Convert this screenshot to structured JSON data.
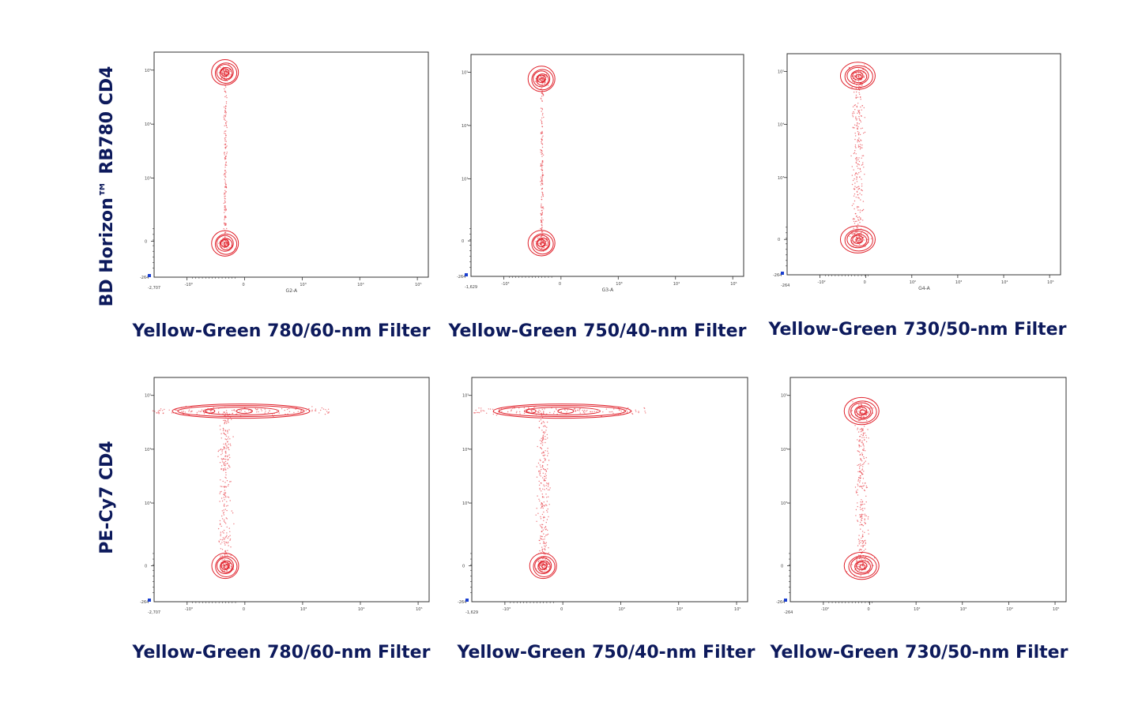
{
  "colors": {
    "contour": "#e0202a",
    "dot": "#e8474f",
    "text": "#0d1a5c",
    "axis": "#333333"
  },
  "row_labels": [
    "BD Horizon™ RB780 CD4",
    "PE-Cy7 CD4"
  ],
  "chart_data": [
    {
      "type": "scatter",
      "subtype": "flow-cytometry-contour",
      "row": 0,
      "col": 0,
      "title": "",
      "xlabel": "Yellow-Green 780/60-nm Filter",
      "ylabel": "BD Horizon™ RB780 CD4",
      "axis_name": "G2-A",
      "x_min_tick": "-2,707",
      "x_ticks": [
        "-10³",
        "0",
        "10³",
        "10⁴",
        "10⁵"
      ],
      "y_ticks": [
        "0",
        "10³",
        "10⁴",
        "10⁵"
      ],
      "scale": "biexponential",
      "populations": [
        {
          "name": "CD4-negative",
          "x": 0.0,
          "y": 0.15,
          "shape": "compact"
        },
        {
          "name": "CD4-positive",
          "x": 0.0,
          "y": 0.91,
          "shape": "compact"
        }
      ],
      "bridge": "tight vertical streak"
    },
    {
      "type": "scatter",
      "subtype": "flow-cytometry-contour",
      "row": 0,
      "col": 1,
      "title": "",
      "xlabel": "Yellow-Green 750/40-nm Filter",
      "ylabel": "BD Horizon™ RB780 CD4",
      "axis_name": "G3-A",
      "x_min_tick": "-1,629",
      "x_ticks": [
        "-10³",
        "0",
        "10³",
        "10⁴",
        "10⁵"
      ],
      "y_ticks": [
        "0",
        "10³",
        "10⁴",
        "10⁵"
      ],
      "scale": "biexponential",
      "populations": [
        {
          "name": "CD4-negative",
          "x": 0.0,
          "y": 0.15,
          "shape": "compact"
        },
        {
          "name": "CD4-positive",
          "x": 0.0,
          "y": 0.89,
          "shape": "compact"
        }
      ],
      "bridge": "tight vertical streak"
    },
    {
      "type": "scatter",
      "subtype": "flow-cytometry-contour",
      "row": 0,
      "col": 2,
      "title": "",
      "xlabel": "Yellow-Green 730/50-nm Filter",
      "ylabel": "BD Horizon™ RB780 CD4",
      "axis_name": "G4-A",
      "x_min_tick": "-264",
      "x_ticks": [
        "-10²",
        "0",
        "10²",
        "10³",
        "10⁴",
        "10⁵"
      ],
      "y_ticks": [
        "0",
        "10³",
        "10⁴",
        "10⁵"
      ],
      "scale": "biexponential",
      "populations": [
        {
          "name": "CD4-negative",
          "x": 0.0,
          "y": 0.16,
          "shape": "broad"
        },
        {
          "name": "CD4-positive",
          "x": 0.0,
          "y": 0.9,
          "shape": "broad"
        }
      ],
      "bridge": "diffuse vertical spread"
    },
    {
      "type": "scatter",
      "subtype": "flow-cytometry-contour",
      "row": 1,
      "col": 0,
      "title": "",
      "xlabel": "Yellow-Green 780/60-nm Filter",
      "ylabel": "PE-Cy7 CD4",
      "axis_name": "",
      "x_min_tick": "-2,707",
      "x_ticks": [
        "-10³",
        "0",
        "10³",
        "10⁴",
        "10⁵"
      ],
      "y_ticks": [
        "0",
        "10³",
        "10⁴",
        "10⁵"
      ],
      "scale": "biexponential",
      "populations": [
        {
          "name": "CD4-negative",
          "x": 0.0,
          "y": 0.16,
          "shape": "compact"
        },
        {
          "name": "CD4-positive",
          "x": -0.2,
          "y": 0.85,
          "shape": "horizontal-smear"
        }
      ],
      "bridge": "diffuse vertical spread"
    },
    {
      "type": "scatter",
      "subtype": "flow-cytometry-contour",
      "row": 1,
      "col": 1,
      "title": "",
      "xlabel": "Yellow-Green 750/40-nm Filter",
      "ylabel": "PE-Cy7 CD4",
      "axis_name": "",
      "x_min_tick": "-1,629",
      "x_ticks": [
        "-10³",
        "0",
        "10³",
        "10⁴",
        "10⁵"
      ],
      "y_ticks": [
        "0",
        "10³",
        "10⁴",
        "10⁵"
      ],
      "scale": "biexponential",
      "populations": [
        {
          "name": "CD4-negative",
          "x": 0.0,
          "y": 0.16,
          "shape": "compact"
        },
        {
          "name": "CD4-positive",
          "x": -0.1,
          "y": 0.85,
          "shape": "horizontal-smear"
        }
      ],
      "bridge": "diffuse vertical spread"
    },
    {
      "type": "scatter",
      "subtype": "flow-cytometry-contour",
      "row": 1,
      "col": 2,
      "title": "",
      "xlabel": "Yellow-Green 730/50-nm Filter",
      "ylabel": "PE-Cy7 CD4",
      "axis_name": "",
      "x_min_tick": "-264",
      "x_ticks": [
        "-10²",
        "0",
        "10²",
        "10³",
        "10⁴",
        "10⁵"
      ],
      "y_ticks": [
        "0",
        "10³",
        "10⁴",
        "10⁵"
      ],
      "scale": "biexponential",
      "populations": [
        {
          "name": "CD4-negative",
          "x": 0.0,
          "y": 0.16,
          "shape": "broad"
        },
        {
          "name": "CD4-positive",
          "x": 0.0,
          "y": 0.85,
          "shape": "broad"
        }
      ],
      "bridge": "diffuse vertical spread"
    }
  ]
}
